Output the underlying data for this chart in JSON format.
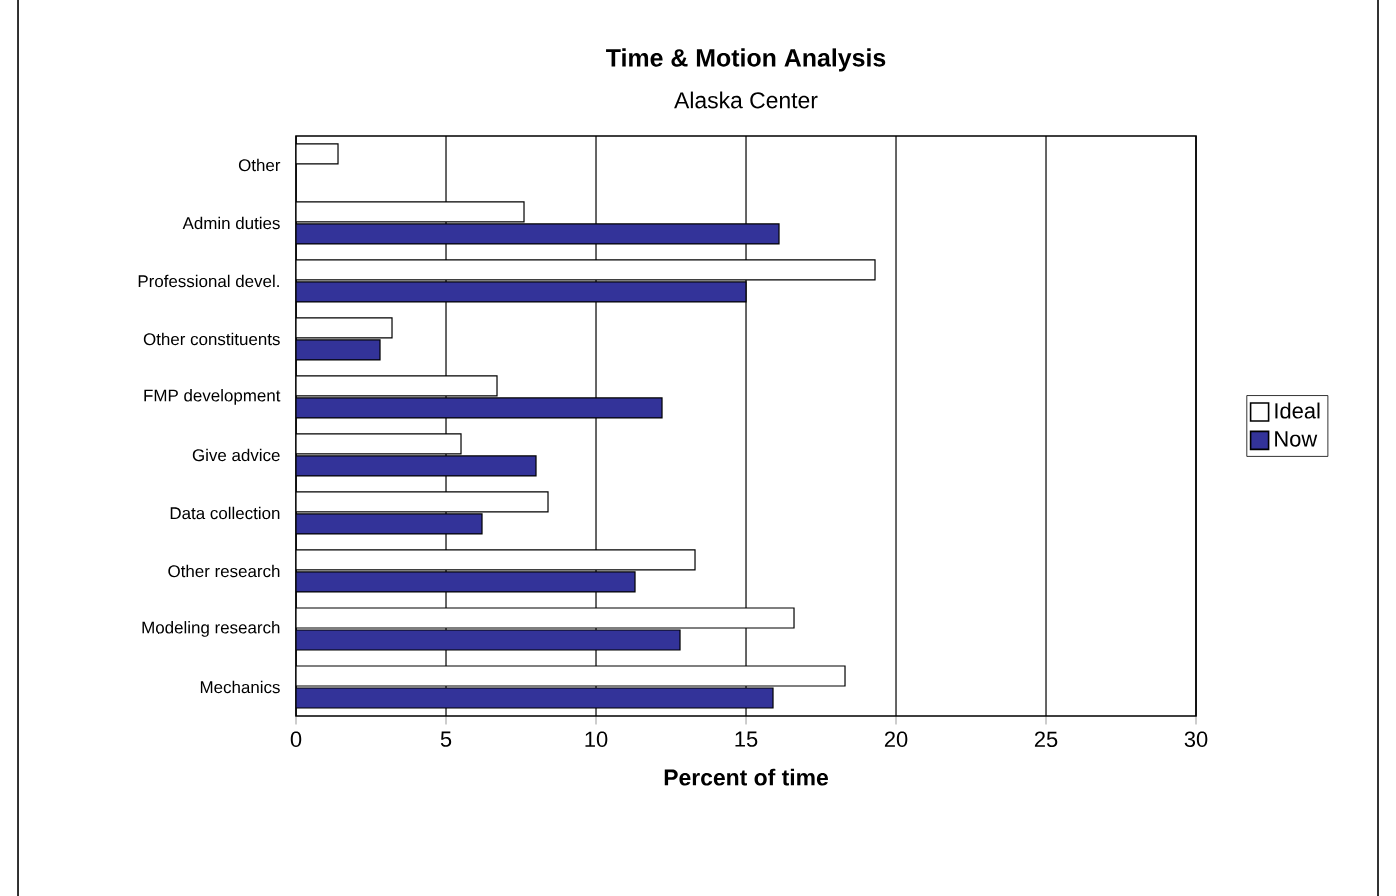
{
  "chart_data": {
    "type": "bar",
    "orientation": "horizontal",
    "title": "Time & Motion Analysis",
    "subtitle": "Alaska Center",
    "xlabel": "Percent of time",
    "categories": [
      "Other",
      "Admin duties",
      "Professional devel.",
      "Other constituents",
      "FMP development",
      "Give advice",
      "Data collection",
      "Other research",
      "Modeling research",
      "Mechanics"
    ],
    "series": [
      {
        "name": "Ideal",
        "color": "#ffffff",
        "values": [
          1.4,
          7.6,
          19.3,
          3.2,
          6.7,
          5.5,
          8.4,
          13.3,
          16.6,
          18.3
        ]
      },
      {
        "name": "Now",
        "color": "#333399",
        "values": [
          null,
          16.1,
          15.0,
          2.8,
          12.2,
          8.0,
          6.2,
          11.3,
          12.8,
          15.9
        ]
      }
    ],
    "xlim": [
      0,
      30
    ],
    "xticks": [
      0,
      5,
      10,
      15,
      20,
      25,
      30
    ],
    "grid": "x",
    "legend": "right"
  }
}
